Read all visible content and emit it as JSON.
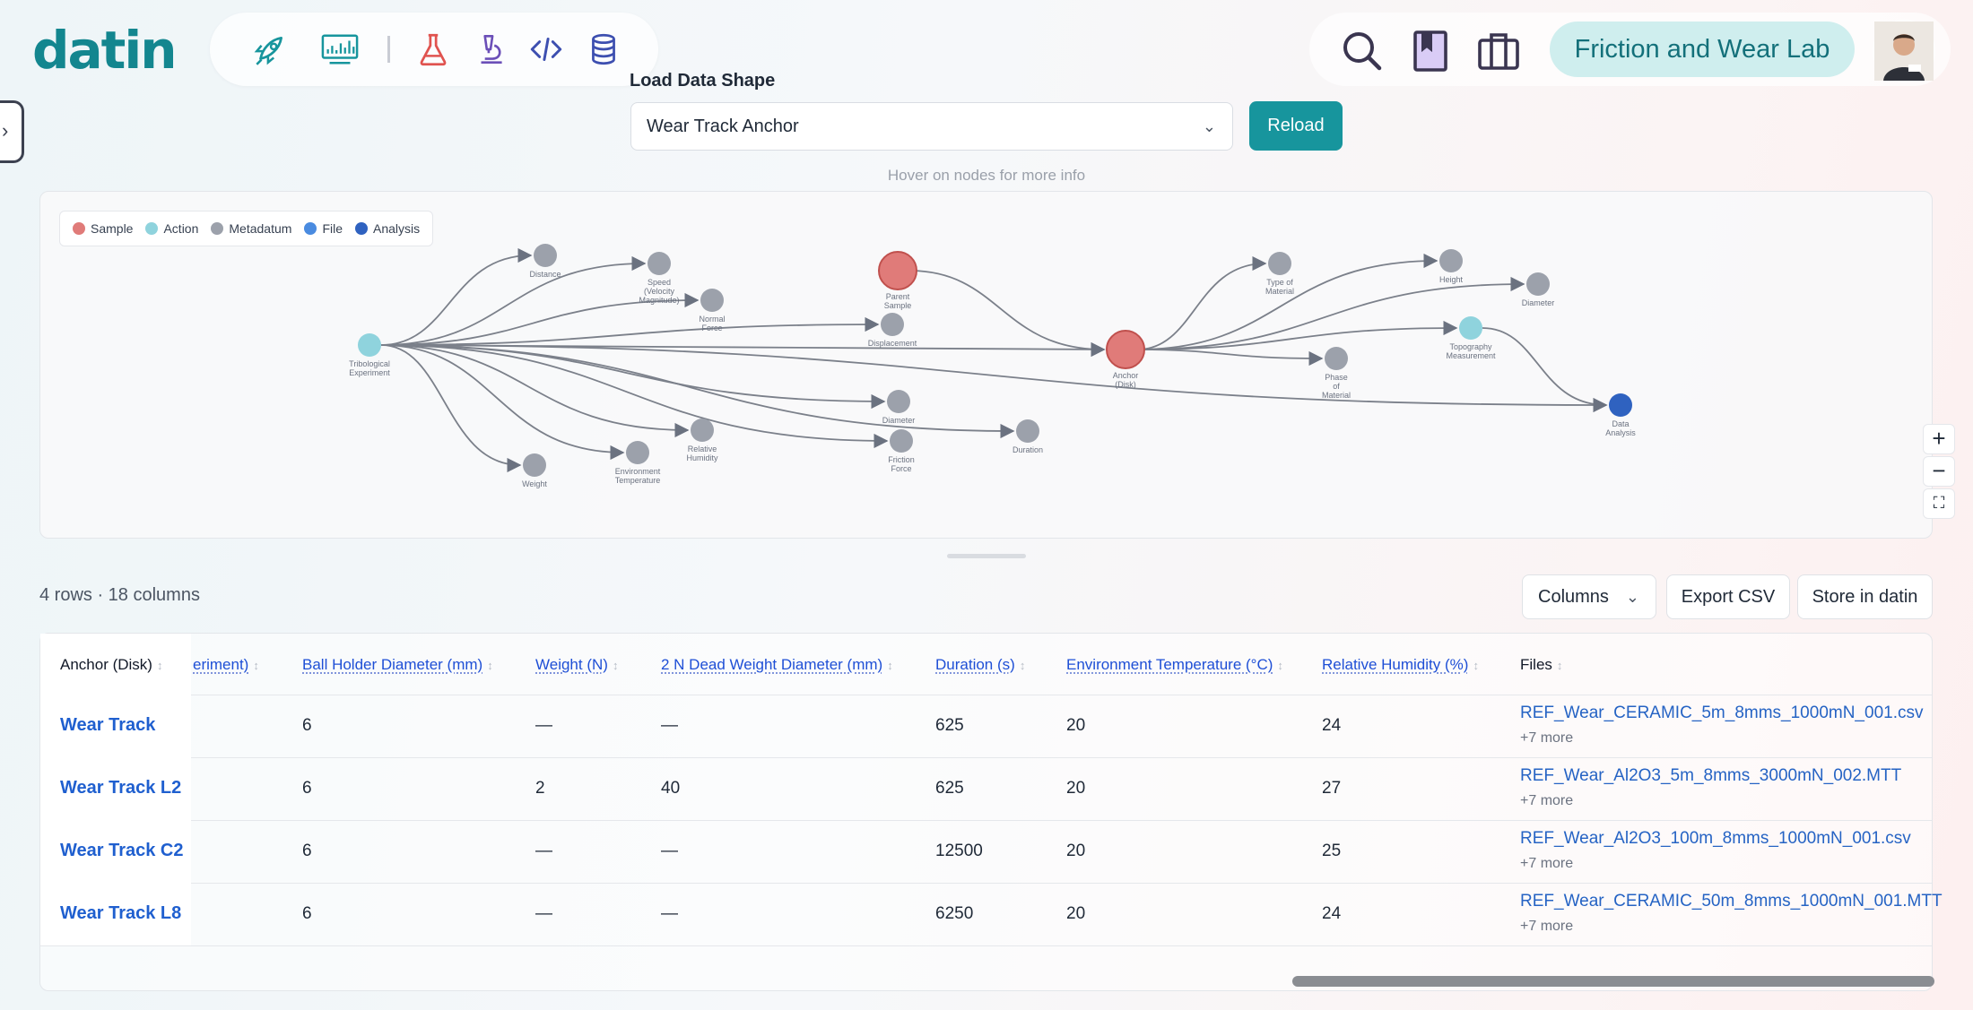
{
  "brand": {
    "logo": "datin"
  },
  "nav": {
    "icons": [
      "rocket-icon",
      "dashboard-chart-icon",
      "flask-icon",
      "microscope-icon",
      "code-icon",
      "database-icon"
    ]
  },
  "header": {
    "lab_name": "Friction and Wear Lab",
    "icons": [
      "search-icon",
      "bookmark-icon",
      "briefcase-icon"
    ]
  },
  "data_shape": {
    "label": "Load Data Shape",
    "selected": "Wear Track Anchor",
    "reload_label": "Reload",
    "hint": "Hover on nodes for more info"
  },
  "legend": [
    {
      "label": "Sample",
      "color": "#e07b79"
    },
    {
      "label": "Action",
      "color": "#8fd3dd"
    },
    {
      "label": "Metadatum",
      "color": "#9ca1ab"
    },
    {
      "label": "File",
      "color": "#4a8be0"
    },
    {
      "label": "Analysis",
      "color": "#2f62c0"
    }
  ],
  "graph_nodes": [
    {
      "id": "tribo",
      "lines": [
        "Tribological",
        "Experiment"
      ],
      "kind": "Action"
    },
    {
      "id": "distance",
      "lines": [
        "Distance"
      ],
      "kind": "Metadatum"
    },
    {
      "id": "speed",
      "lines": [
        "Speed",
        "(Velocity",
        "Magnitude)"
      ],
      "kind": "Metadatum"
    },
    {
      "id": "normal",
      "lines": [
        "Normal",
        "Force"
      ],
      "kind": "Metadatum"
    },
    {
      "id": "displacement",
      "lines": [
        "Displacement"
      ],
      "kind": "Metadatum"
    },
    {
      "id": "diameter1",
      "lines": [
        "Diameter"
      ],
      "kind": "Metadatum"
    },
    {
      "id": "humidity",
      "lines": [
        "Relative",
        "Humidity"
      ],
      "kind": "Metadatum"
    },
    {
      "id": "envtemp",
      "lines": [
        "Environment",
        "Temperature"
      ],
      "kind": "Metadatum"
    },
    {
      "id": "weight",
      "lines": [
        "Weight"
      ],
      "kind": "Metadatum"
    },
    {
      "id": "friction",
      "lines": [
        "Friction",
        "Force"
      ],
      "kind": "Metadatum"
    },
    {
      "id": "duration",
      "lines": [
        "Duration"
      ],
      "kind": "Metadatum"
    },
    {
      "id": "parent",
      "lines": [
        "Parent",
        "Sample"
      ],
      "kind": "Sample"
    },
    {
      "id": "anchor",
      "lines": [
        "Anchor",
        "(Disk)"
      ],
      "kind": "Sample"
    },
    {
      "id": "typemat",
      "lines": [
        "Type of",
        "Material"
      ],
      "kind": "Metadatum"
    },
    {
      "id": "height",
      "lines": [
        "Height"
      ],
      "kind": "Metadatum"
    },
    {
      "id": "diameter2",
      "lines": [
        "Diameter"
      ],
      "kind": "Metadatum"
    },
    {
      "id": "topo",
      "lines": [
        "Topography",
        "Measurement"
      ],
      "kind": "Action"
    },
    {
      "id": "phase",
      "lines": [
        "Phase",
        "of",
        "Material"
      ],
      "kind": "Metadatum"
    },
    {
      "id": "analysis",
      "lines": [
        "Data",
        "Analysis"
      ],
      "kind": "Analysis"
    }
  ],
  "graph_edges": [
    [
      "tribo",
      "distance"
    ],
    [
      "tribo",
      "speed"
    ],
    [
      "tribo",
      "normal"
    ],
    [
      "tribo",
      "displacement"
    ],
    [
      "tribo",
      "anchor"
    ],
    [
      "tribo",
      "diameter1"
    ],
    [
      "tribo",
      "humidity"
    ],
    [
      "tribo",
      "envtemp"
    ],
    [
      "tribo",
      "weight"
    ],
    [
      "tribo",
      "friction"
    ],
    [
      "tribo",
      "duration"
    ],
    [
      "tribo",
      "analysis"
    ],
    [
      "parent",
      "anchor"
    ],
    [
      "anchor",
      "typemat"
    ],
    [
      "anchor",
      "height"
    ],
    [
      "anchor",
      "diameter2"
    ],
    [
      "anchor",
      "topo"
    ],
    [
      "anchor",
      "phase"
    ],
    [
      "topo",
      "analysis"
    ]
  ],
  "zoom": {
    "in": "+",
    "out": "−",
    "fit": "⛶"
  },
  "table": {
    "info": "4 rows · 18 columns",
    "buttons": {
      "columns": "Columns",
      "export": "Export CSV",
      "store": "Store in datin"
    },
    "headers": [
      "Anchor (Disk)",
      "eriment)",
      "Ball Holder Diameter (mm)",
      "Weight (N)",
      "2 N Dead Weight Diameter (mm)",
      "Duration (s)",
      "Environment Temperature (°C)",
      "Relative Humidity (%)",
      "Files"
    ],
    "rows": [
      {
        "name": "Wear Track",
        "ball": "6",
        "weight": "—",
        "dead": "—",
        "duration": "625",
        "temp": "20",
        "humidity": "24",
        "file": "REF_Wear_CERAMIC_5m_8mms_1000mN_001.csv",
        "more": "+7 more"
      },
      {
        "name": "Wear Track L2",
        "ball": "6",
        "weight": "2",
        "dead": "40",
        "duration": "625",
        "temp": "20",
        "humidity": "27",
        "file": "REF_Wear_Al2O3_5m_8mms_3000mN_002.MTT",
        "more": "+7 more"
      },
      {
        "name": "Wear Track C2",
        "ball": "6",
        "weight": "—",
        "dead": "—",
        "duration": "12500",
        "temp": "20",
        "humidity": "25",
        "file": "REF_Wear_Al2O3_100m_8mms_1000mN_001.csv",
        "more": "+7 more"
      },
      {
        "name": "Wear Track L8",
        "ball": "6",
        "weight": "—",
        "dead": "—",
        "duration": "6250",
        "temp": "20",
        "humidity": "24",
        "file": "REF_Wear_CERAMIC_50m_8mms_1000mN_001.MTT",
        "more": "+7 more"
      }
    ]
  }
}
